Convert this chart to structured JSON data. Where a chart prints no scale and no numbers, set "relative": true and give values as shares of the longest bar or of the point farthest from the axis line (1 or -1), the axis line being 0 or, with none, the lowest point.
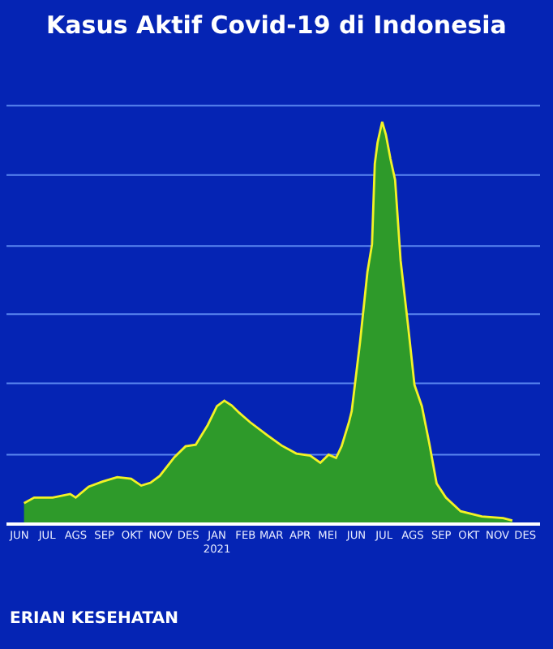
{
  "chart_data": {
    "type": "area",
    "title": "Kasus Aktif Covid-19 di Indonesia",
    "relative": true,
    "marker": "none",
    "ref_lines": [
      {
        "axis": "y",
        "value": 0.169,
        "color": "#5a86f0"
      },
      {
        "axis": "y",
        "value": 0.347,
        "color": "#5a86f0"
      },
      {
        "axis": "y",
        "value": 0.52,
        "color": "#5a86f0"
      },
      {
        "axis": "y",
        "value": 0.69,
        "color": "#5a86f0"
      },
      {
        "axis": "y",
        "value": 0.867,
        "color": "#5a86f0"
      },
      {
        "axis": "y",
        "value": 1.04,
        "color": "#5a86f0"
      }
    ],
    "x": [
      "2020-06-20",
      "2020-07-01",
      "2020-07-21",
      "2020-08-09",
      "2020-08-15",
      "2020-08-29",
      "2020-09-13",
      "2020-09-29",
      "2020-10-14",
      "2020-10-25",
      "2020-11-04",
      "2020-11-14",
      "2020-11-30",
      "2020-12-12",
      "2020-12-23",
      "2021-01-05",
      "2021-01-15",
      "2021-01-23",
      "2021-01-31",
      "2021-02-08",
      "2021-02-20",
      "2021-03-11",
      "2021-03-26",
      "2021-04-11",
      "2021-04-26",
      "2021-05-07",
      "2021-05-16",
      "2021-05-24",
      "2021-05-30",
      "2021-06-07",
      "2021-06-10",
      "2021-06-19",
      "2021-06-27",
      "2021-07-02",
      "2021-07-05",
      "2021-07-08",
      "2021-07-13",
      "2021-07-17",
      "2021-07-22",
      "2021-07-27",
      "2021-08-02",
      "2021-08-10",
      "2021-08-17",
      "2021-08-25",
      "2021-09-02",
      "2021-09-10",
      "2021-09-20",
      "2021-10-06",
      "2021-10-29",
      "2021-11-21",
      "2021-12-01"
    ],
    "series": [
      {
        "color": "#2e9a2a",
        "values": [
          0.048,
          0.062,
          0.062,
          0.071,
          0.062,
          0.089,
          0.102,
          0.113,
          0.109,
          0.092,
          0.099,
          0.116,
          0.163,
          0.19,
          0.194,
          0.243,
          0.29,
          0.304,
          0.292,
          0.274,
          0.25,
          0.217,
          0.192,
          0.172,
          0.167,
          0.149,
          0.169,
          0.161,
          0.19,
          0.25,
          0.278,
          0.45,
          0.625,
          0.694,
          0.895,
          0.948,
          1.0,
          0.968,
          0.907,
          0.855,
          0.653,
          0.492,
          0.343,
          0.29,
          0.198,
          0.097,
          0.062,
          0.028,
          0.015,
          0.011,
          0.005
        ]
      }
    ],
    "xlim": [
      "2020-06-01",
      "2021-12-31"
    ],
    "xticks": [
      {
        "value": "2020-06-15",
        "label": "JUN"
      },
      {
        "value": "2020-07-15",
        "label": "JUL"
      },
      {
        "value": "2020-08-15",
        "label": "AGS"
      },
      {
        "value": "2020-09-15",
        "label": "SEP"
      },
      {
        "value": "2020-10-15",
        "label": "OKT"
      },
      {
        "value": "2020-11-15",
        "label": "NOV"
      },
      {
        "value": "2020-12-15",
        "label": "DES"
      },
      {
        "value": "2021-01-15",
        "label": "JAN\n2021"
      },
      {
        "value": "2021-02-15",
        "label": "FEB"
      },
      {
        "value": "2021-03-15",
        "label": "MAR"
      },
      {
        "value": "2021-04-15",
        "label": "APR"
      },
      {
        "value": "2021-05-15",
        "label": "MEI"
      },
      {
        "value": "2021-06-15",
        "label": "JUN"
      },
      {
        "value": "2021-07-15",
        "label": "JUL"
      },
      {
        "value": "2021-08-15",
        "label": "AGS"
      },
      {
        "value": "2021-09-15",
        "label": "SEP"
      },
      {
        "value": "2021-10-15",
        "label": "OKT"
      },
      {
        "value": "2021-11-15",
        "label": "NOV"
      },
      {
        "value": "2021-12-15",
        "label": "DES"
      }
    ],
    "annotations": [
      "ERIAN KESEHATAN"
    ]
  }
}
